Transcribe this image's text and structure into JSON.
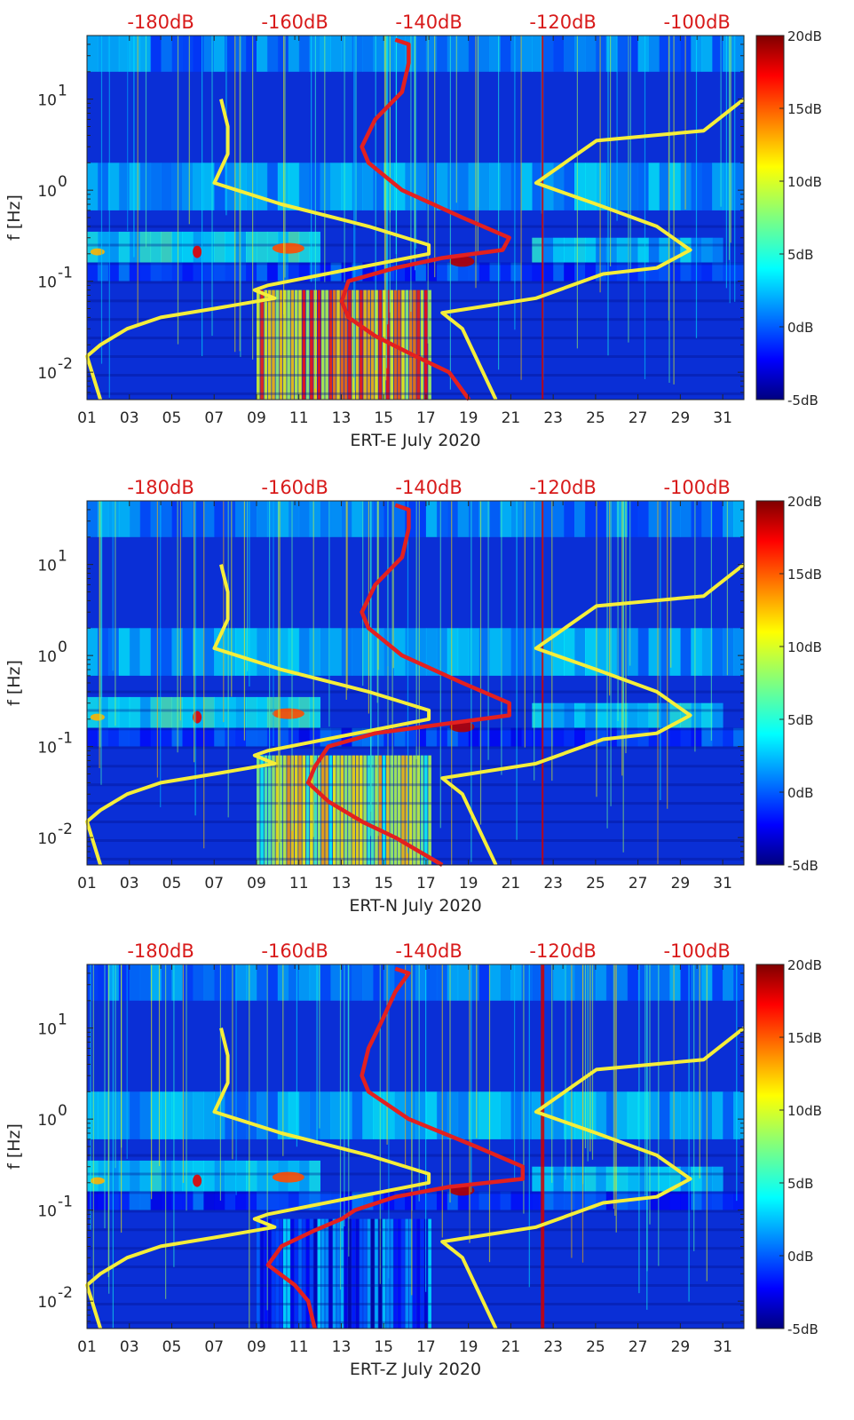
{
  "colors": {
    "red_profile": "#e3201f",
    "yellow_profile": "#f5ee3a",
    "top_axis_text": "#d81a1a",
    "colormap_jet": [
      "#00007f",
      "#0000ff",
      "#007fff",
      "#00ffff",
      "#7fff7f",
      "#ffff00",
      "#ff7f00",
      "#ff0000",
      "#7f0000"
    ]
  },
  "chart_data": [
    {
      "type": "heatmap",
      "title": "",
      "xlabel": "ERT-E July 2020",
      "ylabel": "f [Hz]",
      "x_ticks": [
        "01",
        "03",
        "05",
        "07",
        "09",
        "11",
        "13",
        "15",
        "17",
        "19",
        "21",
        "23",
        "25",
        "27",
        "29",
        "31"
      ],
      "xlim": [
        1,
        32
      ],
      "y_scale": "log",
      "ylim": [
        0.005,
        50
      ],
      "y_ticks": [
        {
          "value": 0.01,
          "base": "10",
          "exp": "-2"
        },
        {
          "value": 0.1,
          "base": "10",
          "exp": "-1"
        },
        {
          "value": 1,
          "base": "10",
          "exp": "0"
        },
        {
          "value": 10,
          "base": "10",
          "exp": "1"
        }
      ],
      "top_axis": {
        "label_values": [
          -180,
          -160,
          -140,
          -120,
          -100
        ],
        "labels": [
          "-180dB",
          "-160dB",
          "-140dB",
          "-120dB",
          "-100dB"
        ],
        "range_db": [
          -191,
          -93
        ]
      },
      "colorbar": {
        "labels": [
          "20dB",
          "15dB",
          "10dB",
          "5dB",
          "0dB",
          "-5dB"
        ],
        "range": [
          -5,
          20
        ]
      },
      "red_profile_db": [
        {
          "f": 45,
          "db": -145
        },
        {
          "f": 40,
          "db": -143
        },
        {
          "f": 25,
          "db": -143
        },
        {
          "f": 12,
          "db": -144
        },
        {
          "f": 6,
          "db": -148
        },
        {
          "f": 3,
          "db": -150
        },
        {
          "f": 2,
          "db": -149
        },
        {
          "f": 1,
          "db": -144
        },
        {
          "f": 0.5,
          "db": -135
        },
        {
          "f": 0.3,
          "db": -128
        },
        {
          "f": 0.22,
          "db": -129
        },
        {
          "f": 0.18,
          "db": -138
        },
        {
          "f": 0.14,
          "db": -145
        },
        {
          "f": 0.1,
          "db": -152
        },
        {
          "f": 0.06,
          "db": -153
        },
        {
          "f": 0.04,
          "db": -152
        },
        {
          "f": 0.025,
          "db": -148
        },
        {
          "f": 0.015,
          "db": -142
        },
        {
          "f": 0.01,
          "db": -137
        },
        {
          "f": 0.005,
          "db": -134
        }
      ],
      "yellow_low_noise_db": [
        {
          "f": 10,
          "db": -171
        },
        {
          "f": 5,
          "db": -170
        },
        {
          "f": 2.5,
          "db": -170
        },
        {
          "f": 1.2,
          "db": -172
        },
        {
          "f": 0.7,
          "db": -162
        },
        {
          "f": 0.4,
          "db": -149
        },
        {
          "f": 0.25,
          "db": -140
        },
        {
          "f": 0.2,
          "db": -140
        },
        {
          "f": 0.13,
          "db": -153
        },
        {
          "f": 0.09,
          "db": -164
        },
        {
          "f": 0.08,
          "db": -166
        },
        {
          "f": 0.065,
          "db": -163
        },
        {
          "f": 0.05,
          "db": -172
        },
        {
          "f": 0.04,
          "db": -180
        },
        {
          "f": 0.03,
          "db": -185
        },
        {
          "f": 0.02,
          "db": -189
        },
        {
          "f": 0.015,
          "db": -191
        },
        {
          "f": 0.005,
          "db": -189
        }
      ],
      "yellow_high_noise_db": [
        {
          "f": 10,
          "db": -93
        },
        {
          "f": 4.5,
          "db": -99
        },
        {
          "f": 3.5,
          "db": -115
        },
        {
          "f": 1.2,
          "db": -124
        },
        {
          "f": 0.7,
          "db": -115
        },
        {
          "f": 0.4,
          "db": -106
        },
        {
          "f": 0.22,
          "db": -101
        },
        {
          "f": 0.14,
          "db": -106
        },
        {
          "f": 0.12,
          "db": -114
        },
        {
          "f": 0.065,
          "db": -124
        },
        {
          "f": 0.045,
          "db": -138
        },
        {
          "f": 0.03,
          "db": -135
        },
        {
          "f": 0.005,
          "db": -130
        }
      ]
    },
    {
      "type": "heatmap",
      "title": "",
      "xlabel": "ERT-N July 2020",
      "ylabel": "f [Hz]",
      "x_ticks": [
        "01",
        "03",
        "05",
        "07",
        "09",
        "11",
        "13",
        "15",
        "17",
        "19",
        "21",
        "23",
        "25",
        "27",
        "29",
        "31"
      ],
      "xlim": [
        1,
        32
      ],
      "y_scale": "log",
      "ylim": [
        0.005,
        50
      ],
      "y_ticks": [
        {
          "value": 0.01,
          "base": "10",
          "exp": "-2"
        },
        {
          "value": 0.1,
          "base": "10",
          "exp": "-1"
        },
        {
          "value": 1,
          "base": "10",
          "exp": "0"
        },
        {
          "value": 10,
          "base": "10",
          "exp": "1"
        }
      ],
      "top_axis": {
        "label_values": [
          -180,
          -160,
          -140,
          -120,
          -100
        ],
        "labels": [
          "-180dB",
          "-160dB",
          "-140dB",
          "-120dB",
          "-100dB"
        ],
        "range_db": [
          -191,
          -93
        ]
      },
      "colorbar": {
        "labels": [
          "20dB",
          "15dB",
          "10dB",
          "5dB",
          "0dB",
          "-5dB"
        ],
        "range": [
          -5,
          20
        ]
      },
      "red_profile_db": [
        {
          "f": 45,
          "db": -145
        },
        {
          "f": 40,
          "db": -143
        },
        {
          "f": 25,
          "db": -143
        },
        {
          "f": 12,
          "db": -144
        },
        {
          "f": 6,
          "db": -148
        },
        {
          "f": 3,
          "db": -150
        },
        {
          "f": 2,
          "db": -149
        },
        {
          "f": 1,
          "db": -144
        },
        {
          "f": 0.5,
          "db": -135
        },
        {
          "f": 0.3,
          "db": -128
        },
        {
          "f": 0.22,
          "db": -128
        },
        {
          "f": 0.18,
          "db": -137
        },
        {
          "f": 0.14,
          "db": -148
        },
        {
          "f": 0.1,
          "db": -155
        },
        {
          "f": 0.06,
          "db": -157
        },
        {
          "f": 0.04,
          "db": -158
        },
        {
          "f": 0.025,
          "db": -155
        },
        {
          "f": 0.015,
          "db": -150
        },
        {
          "f": 0.01,
          "db": -145
        },
        {
          "f": 0.005,
          "db": -138
        }
      ],
      "yellow_low_noise_db": [
        {
          "f": 10,
          "db": -171
        },
        {
          "f": 5,
          "db": -170
        },
        {
          "f": 2.5,
          "db": -170
        },
        {
          "f": 1.2,
          "db": -172
        },
        {
          "f": 0.7,
          "db": -162
        },
        {
          "f": 0.4,
          "db": -149
        },
        {
          "f": 0.25,
          "db": -140
        },
        {
          "f": 0.2,
          "db": -140
        },
        {
          "f": 0.13,
          "db": -153
        },
        {
          "f": 0.09,
          "db": -164
        },
        {
          "f": 0.08,
          "db": -166
        },
        {
          "f": 0.065,
          "db": -163
        },
        {
          "f": 0.05,
          "db": -172
        },
        {
          "f": 0.04,
          "db": -180
        },
        {
          "f": 0.03,
          "db": -185
        },
        {
          "f": 0.02,
          "db": -189
        },
        {
          "f": 0.015,
          "db": -191
        },
        {
          "f": 0.005,
          "db": -189
        }
      ],
      "yellow_high_noise_db": [
        {
          "f": 10,
          "db": -93
        },
        {
          "f": 4.5,
          "db": -99
        },
        {
          "f": 3.5,
          "db": -115
        },
        {
          "f": 1.2,
          "db": -124
        },
        {
          "f": 0.7,
          "db": -115
        },
        {
          "f": 0.4,
          "db": -106
        },
        {
          "f": 0.22,
          "db": -101
        },
        {
          "f": 0.14,
          "db": -106
        },
        {
          "f": 0.12,
          "db": -114
        },
        {
          "f": 0.065,
          "db": -124
        },
        {
          "f": 0.045,
          "db": -138
        },
        {
          "f": 0.03,
          "db": -135
        },
        {
          "f": 0.005,
          "db": -130
        }
      ]
    },
    {
      "type": "heatmap",
      "title": "",
      "xlabel": "ERT-Z July 2020",
      "ylabel": "f [Hz]",
      "x_ticks": [
        "01",
        "03",
        "05",
        "07",
        "09",
        "11",
        "13",
        "15",
        "17",
        "19",
        "21",
        "23",
        "25",
        "27",
        "29",
        "31"
      ],
      "xlim": [
        1,
        32
      ],
      "y_scale": "log",
      "ylim": [
        0.005,
        50
      ],
      "y_ticks": [
        {
          "value": 0.01,
          "base": "10",
          "exp": "-2"
        },
        {
          "value": 0.1,
          "base": "10",
          "exp": "-1"
        },
        {
          "value": 1,
          "base": "10",
          "exp": "0"
        },
        {
          "value": 10,
          "base": "10",
          "exp": "1"
        }
      ],
      "top_axis": {
        "label_values": [
          -180,
          -160,
          -140,
          -120,
          -100
        ],
        "labels": [
          "-180dB",
          "-160dB",
          "-140dB",
          "-120dB",
          "-100dB"
        ],
        "range_db": [
          -191,
          -93
        ]
      },
      "colorbar": {
        "labels": [
          "20dB",
          "15dB",
          "10dB",
          "5dB",
          "0dB",
          "-5dB"
        ],
        "range": [
          -5,
          20
        ]
      },
      "red_profile_db": [
        {
          "f": 45,
          "db": -145
        },
        {
          "f": 40,
          "db": -143
        },
        {
          "f": 25,
          "db": -145
        },
        {
          "f": 12,
          "db": -147
        },
        {
          "f": 6,
          "db": -149
        },
        {
          "f": 3,
          "db": -150
        },
        {
          "f": 2,
          "db": -149
        },
        {
          "f": 1,
          "db": -143
        },
        {
          "f": 0.5,
          "db": -133
        },
        {
          "f": 0.3,
          "db": -126
        },
        {
          "f": 0.22,
          "db": -126
        },
        {
          "f": 0.18,
          "db": -137
        },
        {
          "f": 0.14,
          "db": -145
        },
        {
          "f": 0.1,
          "db": -151
        },
        {
          "f": 0.08,
          "db": -153
        },
        {
          "f": 0.06,
          "db": -157
        },
        {
          "f": 0.04,
          "db": -162
        },
        {
          "f": 0.025,
          "db": -164
        },
        {
          "f": 0.015,
          "db": -160
        },
        {
          "f": 0.01,
          "db": -158
        },
        {
          "f": 0.005,
          "db": -157
        }
      ],
      "yellow_low_noise_db": [
        {
          "f": 10,
          "db": -171
        },
        {
          "f": 5,
          "db": -170
        },
        {
          "f": 2.5,
          "db": -170
        },
        {
          "f": 1.2,
          "db": -172
        },
        {
          "f": 0.7,
          "db": -162
        },
        {
          "f": 0.4,
          "db": -149
        },
        {
          "f": 0.25,
          "db": -140
        },
        {
          "f": 0.2,
          "db": -140
        },
        {
          "f": 0.13,
          "db": -153
        },
        {
          "f": 0.09,
          "db": -164
        },
        {
          "f": 0.08,
          "db": -166
        },
        {
          "f": 0.065,
          "db": -163
        },
        {
          "f": 0.05,
          "db": -172
        },
        {
          "f": 0.04,
          "db": -180
        },
        {
          "f": 0.03,
          "db": -185
        },
        {
          "f": 0.02,
          "db": -189
        },
        {
          "f": 0.015,
          "db": -191
        },
        {
          "f": 0.005,
          "db": -189
        }
      ],
      "yellow_high_noise_db": [
        {
          "f": 10,
          "db": -93
        },
        {
          "f": 4.5,
          "db": -99
        },
        {
          "f": 3.5,
          "db": -115
        },
        {
          "f": 1.2,
          "db": -124
        },
        {
          "f": 0.7,
          "db": -115
        },
        {
          "f": 0.4,
          "db": -106
        },
        {
          "f": 0.22,
          "db": -101
        },
        {
          "f": 0.14,
          "db": -106
        },
        {
          "f": 0.12,
          "db": -114
        },
        {
          "f": 0.065,
          "db": -124
        },
        {
          "f": 0.045,
          "db": -138
        },
        {
          "f": 0.03,
          "db": -135
        },
        {
          "f": 0.005,
          "db": -130
        }
      ]
    }
  ]
}
